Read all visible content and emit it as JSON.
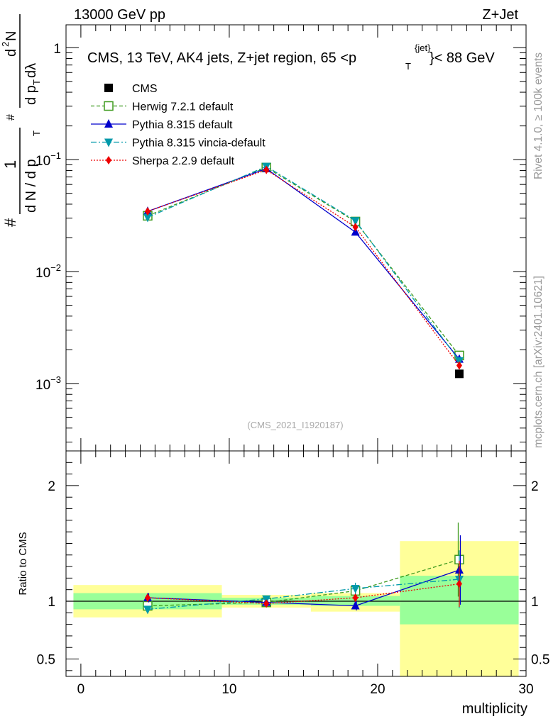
{
  "header": {
    "left": "13000 GeV pp",
    "right": "Z+Jet"
  },
  "side_labels": {
    "rivet": "Rivet 4.1.0, ≥ 100k events",
    "mcplots": "mcplots.cern.ch [arXiv:2401.10621]"
  },
  "chart_data": [
    {
      "type": "line",
      "title": "CMS, 13 TeV, AK4 jets, Z+jet region, 65 <p_T^{jet}< 88 GeV",
      "title_parts": {
        "main": "CMS, 13 TeV, AK4 jets, Z+jet region, 65 <p",
        "sup": "{jet}",
        "sub": "T",
        "tail": "}< 88 GeV"
      },
      "watermark": "(CMS_2021_I1920187)",
      "xlabel": "multiplicity",
      "ylabel": "1 / (dN / d p_T) d²N / (d p_T dλ)",
      "ylabel_parts": {
        "num1": "1",
        "den1a": "d N / d p",
        "den1b": "T",
        "num2a": "d",
        "num2b": "2",
        "num2c": "N",
        "den2a": "d p",
        "den2b": "T",
        "den2c": " dλ",
        "hash": "#"
      },
      "yscale": "log",
      "ylim": [
        0.00025,
        1.6
      ],
      "xlim": [
        -1,
        30
      ],
      "ytick_labels": [
        {
          "base": "10",
          "exp": "−3",
          "value": 0.001
        },
        {
          "base": "10",
          "exp": "−2",
          "value": 0.01
        },
        {
          "base": "10",
          "exp": "−1",
          "value": 0.1
        },
        {
          "base": "1",
          "exp": "",
          "value": 1
        }
      ],
      "x": [
        4.5,
        12.5,
        18.5,
        25.5
      ],
      "series": [
        {
          "name": "CMS",
          "color": "#000000",
          "marker": "square-filled",
          "values": [
            null,
            null,
            null,
            0.00122
          ]
        },
        {
          "name": "Herwig 7.2.1 default",
          "color": "#3d9a1d",
          "marker": "square-open",
          "dash": "dashed",
          "values": [
            0.0315,
            0.085,
            0.028,
            0.00178
          ]
        },
        {
          "name": "Pythia 8.315 default",
          "color": "#0000cc",
          "marker": "triangle-up",
          "dash": "solid",
          "values": [
            0.0345,
            0.083,
            0.0225,
            0.00165
          ]
        },
        {
          "name": "Pythia 8.315 vincia-default",
          "color": "#0099aa",
          "marker": "triangle-down",
          "dash": "dashdot",
          "values": [
            0.0305,
            0.087,
            0.0285,
            0.0016
          ]
        },
        {
          "name": "Sherpa 2.2.9 default",
          "color": "#ee0000",
          "marker": "diamond",
          "dash": "dotted",
          "values": [
            0.0345,
            0.081,
            0.025,
            0.00145
          ]
        }
      ]
    },
    {
      "type": "line",
      "title": "",
      "xlabel": "multiplicity",
      "ylabel": "Ratio to CMS",
      "ylim": [
        0.35,
        2.3
      ],
      "xlim": [
        -1,
        30
      ],
      "xtick_labels": [
        "0",
        "10",
        "20",
        "30"
      ],
      "ytick_labels": [
        "0.5",
        "1",
        "2"
      ],
      "bins": [
        {
          "lo": -0.5,
          "hi": 9.5,
          "green": [
            0.93,
            1.07
          ],
          "yellow": [
            0.86,
            1.14
          ]
        },
        {
          "lo": 9.5,
          "hi": 15.5,
          "green": [
            0.97,
            1.03
          ],
          "yellow": [
            0.945,
            1.055
          ]
        },
        {
          "lo": 15.5,
          "hi": 21.5,
          "green": [
            0.96,
            1.045
          ],
          "yellow": [
            0.91,
            1.07
          ]
        },
        {
          "lo": 21.5,
          "hi": 29.5,
          "green": [
            0.8,
            1.22
          ],
          "yellow": [
            0.35,
            1.52
          ]
        }
      ],
      "x": [
        4.5,
        12.5,
        18.5,
        25.5
      ],
      "series": [
        {
          "name": "Herwig 7.2.1 default",
          "color": "#3d9a1d",
          "values": [
            0.96,
            0.99,
            1.09,
            1.36
          ],
          "err": [
            0.03,
            0.02,
            0.04,
            0.32
          ]
        },
        {
          "name": "Pythia 8.315 default",
          "color": "#0000cc",
          "values": [
            1.03,
            0.99,
            0.96,
            1.27
          ],
          "err": [
            0.04,
            0.02,
            0.04,
            0.3
          ]
        },
        {
          "name": "Pythia 8.315 vincia-default",
          "color": "#0099aa",
          "values": [
            0.93,
            1.02,
            1.11,
            1.19
          ],
          "err": [
            0.03,
            0.02,
            0.05,
            0.25
          ]
        },
        {
          "name": "Sherpa 2.2.9 default",
          "color": "#ee0000",
          "values": [
            1.03,
            0.98,
            1.03,
            1.15
          ],
          "err": [
            0.03,
            0.02,
            0.03,
            0.2
          ]
        }
      ]
    }
  ]
}
